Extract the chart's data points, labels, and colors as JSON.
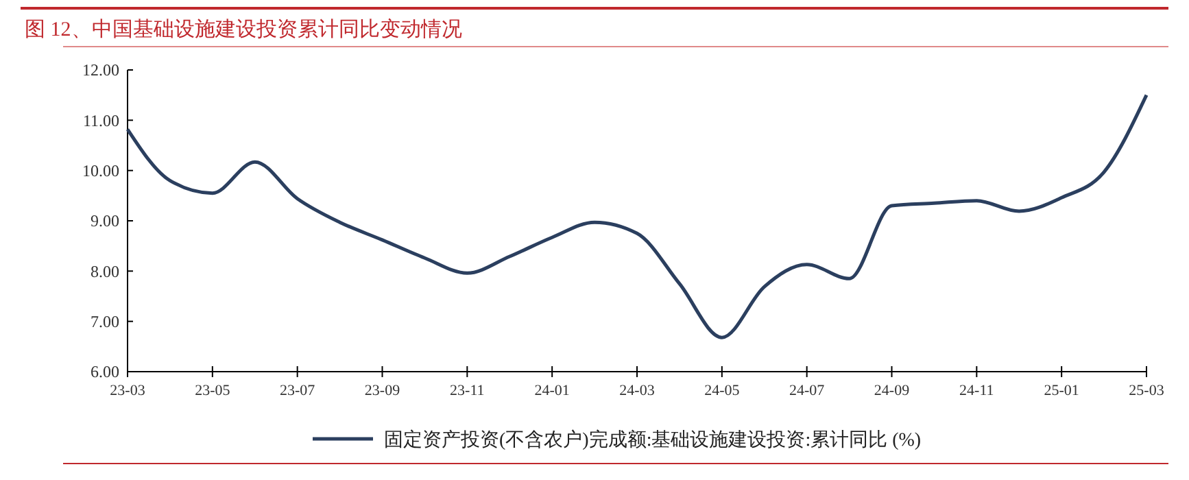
{
  "chart_data": {
    "type": "line",
    "title": "图 12、中国基础设施建设投资累计同比变动情况",
    "categories": [
      "23-03",
      null,
      "23-05",
      null,
      "23-07",
      null,
      "23-09",
      null,
      "23-11",
      null,
      "24-01",
      null,
      "24-03",
      null,
      "24-05",
      null,
      "24-07",
      null,
      "24-09",
      null,
      "24-11",
      null,
      "25-01",
      null,
      "25-03"
    ],
    "series": [
      {
        "name": "固定资产投资(不含农户)完成额:基础设施建设投资:累计同比 (%)",
        "color": "#2b3f5f",
        "values": [
          10.82,
          9.8,
          9.55,
          10.17,
          9.44,
          8.97,
          8.62,
          8.26,
          7.96,
          8.29,
          8.67,
          8.97,
          8.75,
          7.75,
          6.68,
          7.69,
          8.13,
          7.85,
          9.3,
          9.35,
          9.4,
          9.19,
          9.46,
          9.97,
          11.5
        ]
      }
    ],
    "ylim": [
      6,
      12
    ],
    "yticks": [
      {
        "value": 6,
        "label": "6.00"
      },
      {
        "value": 7,
        "label": "7.00"
      },
      {
        "value": 8,
        "label": "8.00"
      },
      {
        "value": 9,
        "label": "9.00"
      },
      {
        "value": 10,
        "label": "10.00"
      },
      {
        "value": 11,
        "label": "11.00"
      },
      {
        "value": 12,
        "label": "12.00"
      }
    ],
    "legend": "bottom",
    "marker": "none",
    "line_style": "solid"
  }
}
